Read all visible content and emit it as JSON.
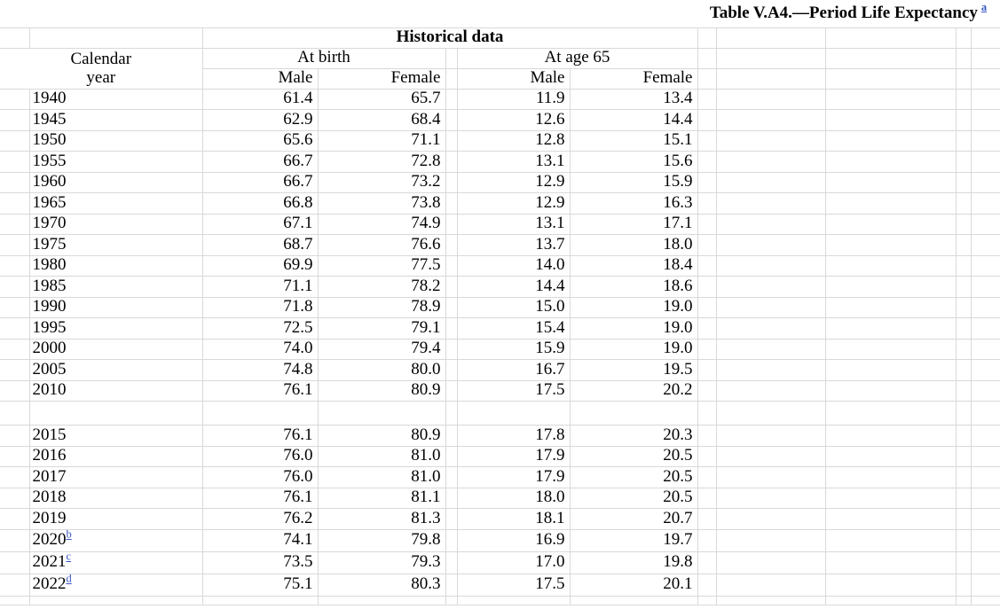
{
  "title": {
    "text": "Table V.A4.—Period Life Expectancy",
    "footnote_ref": "a"
  },
  "colors": {
    "link_blue": "#3a55c4",
    "gridline": "#d9d9d9"
  },
  "table": {
    "section_header": "Historical data",
    "headers": {
      "calendar_year": "Calendar year",
      "at_birth": "At birth",
      "at_age_65": "At age 65",
      "male": "Male",
      "female": "Female"
    },
    "rows": [
      {
        "year": "1940",
        "note": "",
        "at_birth_male": "61.4",
        "at_birth_female": "65.7",
        "at_age65_male": "11.9",
        "at_age65_female": "13.4"
      },
      {
        "year": "1945",
        "note": "",
        "at_birth_male": "62.9",
        "at_birth_female": "68.4",
        "at_age65_male": "12.6",
        "at_age65_female": "14.4"
      },
      {
        "year": "1950",
        "note": "",
        "at_birth_male": "65.6",
        "at_birth_female": "71.1",
        "at_age65_male": "12.8",
        "at_age65_female": "15.1"
      },
      {
        "year": "1955",
        "note": "",
        "at_birth_male": "66.7",
        "at_birth_female": "72.8",
        "at_age65_male": "13.1",
        "at_age65_female": "15.6"
      },
      {
        "year": "1960",
        "note": "",
        "at_birth_male": "66.7",
        "at_birth_female": "73.2",
        "at_age65_male": "12.9",
        "at_age65_female": "15.9"
      },
      {
        "year": "1965",
        "note": "",
        "at_birth_male": "66.8",
        "at_birth_female": "73.8",
        "at_age65_male": "12.9",
        "at_age65_female": "16.3"
      },
      {
        "year": "1970",
        "note": "",
        "at_birth_male": "67.1",
        "at_birth_female": "74.9",
        "at_age65_male": "13.1",
        "at_age65_female": "17.1"
      },
      {
        "year": "1975",
        "note": "",
        "at_birth_male": "68.7",
        "at_birth_female": "76.6",
        "at_age65_male": "13.7",
        "at_age65_female": "18.0"
      },
      {
        "year": "1980",
        "note": "",
        "at_birth_male": "69.9",
        "at_birth_female": "77.5",
        "at_age65_male": "14.0",
        "at_age65_female": "18.4"
      },
      {
        "year": "1985",
        "note": "",
        "at_birth_male": "71.1",
        "at_birth_female": "78.2",
        "at_age65_male": "14.4",
        "at_age65_female": "18.6"
      },
      {
        "year": "1990",
        "note": "",
        "at_birth_male": "71.8",
        "at_birth_female": "78.9",
        "at_age65_male": "15.0",
        "at_age65_female": "19.0"
      },
      {
        "year": "1995",
        "note": "",
        "at_birth_male": "72.5",
        "at_birth_female": "79.1",
        "at_age65_male": "15.4",
        "at_age65_female": "19.0"
      },
      {
        "year": "2000",
        "note": "",
        "at_birth_male": "74.0",
        "at_birth_female": "79.4",
        "at_age65_male": "15.9",
        "at_age65_female": "19.0"
      },
      {
        "year": "2005",
        "note": "",
        "at_birth_male": "74.8",
        "at_birth_female": "80.0",
        "at_age65_male": "16.7",
        "at_age65_female": "19.5"
      },
      {
        "year": "2010",
        "note": "",
        "at_birth_male": "76.1",
        "at_birth_female": "80.9",
        "at_age65_male": "17.5",
        "at_age65_female": "20.2"
      },
      {
        "gap": true
      },
      {
        "year": "2015",
        "note": "",
        "at_birth_male": "76.1",
        "at_birth_female": "80.9",
        "at_age65_male": "17.8",
        "at_age65_female": "20.3"
      },
      {
        "year": "2016",
        "note": "",
        "at_birth_male": "76.0",
        "at_birth_female": "81.0",
        "at_age65_male": "17.9",
        "at_age65_female": "20.5"
      },
      {
        "year": "2017",
        "note": "",
        "at_birth_male": "76.0",
        "at_birth_female": "81.0",
        "at_age65_male": "17.9",
        "at_age65_female": "20.5"
      },
      {
        "year": "2018",
        "note": "",
        "at_birth_male": "76.1",
        "at_birth_female": "81.1",
        "at_age65_male": "18.0",
        "at_age65_female": "20.5"
      },
      {
        "year": "2019",
        "note": "",
        "at_birth_male": "76.2",
        "at_birth_female": "81.3",
        "at_age65_male": "18.1",
        "at_age65_female": "20.7"
      },
      {
        "year": "2020",
        "note": "b",
        "at_birth_male": "74.1",
        "at_birth_female": "79.8",
        "at_age65_male": "16.9",
        "at_age65_female": "19.7"
      },
      {
        "year": "2021",
        "note": "c",
        "at_birth_male": "73.5",
        "at_birth_female": "79.3",
        "at_age65_male": "17.0",
        "at_age65_female": "19.8"
      },
      {
        "year": "2022",
        "note": "d",
        "at_birth_male": "75.1",
        "at_birth_female": "80.3",
        "at_age65_male": "17.5",
        "at_age65_female": "20.1"
      }
    ]
  }
}
